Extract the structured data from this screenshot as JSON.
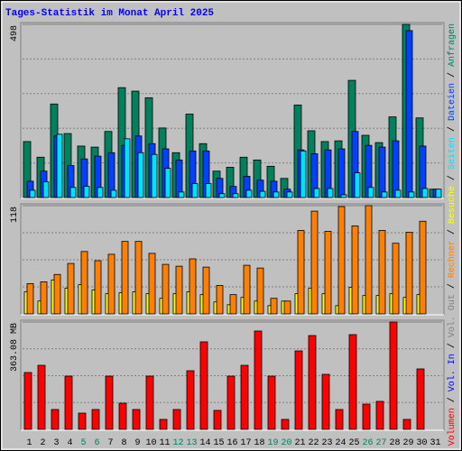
{
  "chart_data": [
    {
      "type": "bar",
      "title": "Tages-Statistik im Monat April 2025",
      "legend_separator": " / ",
      "ylim": [
        0,
        498
      ],
      "yticks": [
        498
      ],
      "legend": "right",
      "series": [
        {
          "name": "Anfragen",
          "color": "#00805c",
          "values": [
            161,
            116,
            269,
            184,
            148,
            145,
            190,
            316,
            306,
            287,
            200,
            129,
            240,
            155,
            76,
            87,
            116,
            108,
            90,
            55,
            266,
            192,
            161,
            163,
            337,
            179,
            158,
            232,
            498,
            229,
            24
          ]
        },
        {
          "name": "Dateien",
          "color": "#0040ff",
          "values": [
            47,
            76,
            177,
            92,
            111,
            119,
            129,
            150,
            177,
            155,
            140,
            108,
            134,
            134,
            55,
            32,
            61,
            50,
            47,
            24,
            137,
            126,
            137,
            140,
            190,
            150,
            145,
            163,
            480,
            148,
            24
          ]
        },
        {
          "name": "Seiten",
          "color": "#00e0ff",
          "values": [
            21,
            45,
            182,
            29,
            32,
            29,
            21,
            169,
            129,
            124,
            84,
            16,
            40,
            40,
            11,
            11,
            21,
            18,
            16,
            16,
            134,
            26,
            26,
            8,
            71,
            29,
            16,
            21,
            16,
            26,
            24
          ]
        }
      ]
    },
    {
      "type": "bar",
      "ylim": [
        0,
        118
      ],
      "yticks": [
        118
      ],
      "legend": "right",
      "series": [
        {
          "name": "Besuche",
          "color": "#ffff00",
          "values": [
            24,
            14,
            37,
            28,
            32,
            26,
            22,
            23,
            24,
            22,
            17,
            22,
            24,
            21,
            13,
            10,
            18,
            14,
            9,
            14,
            22,
            28,
            22,
            9,
            29,
            20,
            20,
            22,
            18,
            21,
            0
          ]
        },
        {
          "name": "Rechner",
          "color": "#ff8000",
          "values": [
            33,
            35,
            43,
            55,
            68,
            58,
            65,
            79,
            79,
            66,
            54,
            52,
            60,
            51,
            31,
            21,
            53,
            50,
            17,
            14,
            91,
            112,
            90,
            117,
            96,
            118,
            91,
            77,
            89,
            101,
            0
          ]
        }
      ]
    },
    {
      "type": "bar",
      "ylim": [
        0,
        363.08
      ],
      "yticks": [
        {
          "value": 363.08,
          "label": "363.08 MB"
        }
      ],
      "legend": "right",
      "categories": [
        "1",
        "2",
        "3",
        "4",
        "5",
        "6",
        "7",
        "8",
        "9",
        "10",
        "11",
        "12",
        "13",
        "14",
        "15",
        "16",
        "17",
        "18",
        "19",
        "20",
        "21",
        "22",
        "23",
        "24",
        "25",
        "26",
        "27",
        "28",
        "29",
        "30",
        "31"
      ],
      "category_colors": [
        "#000000",
        "#000000",
        "#000000",
        "#000000",
        "#00805c",
        "#00805c",
        "#000000",
        "#000000",
        "#000000",
        "#000000",
        "#000000",
        "#00805c",
        "#00805c",
        "#000000",
        "#000000",
        "#000000",
        "#000000",
        "#000000",
        "#00805c",
        "#00805c",
        "#000000",
        "#000000",
        "#000000",
        "#000000",
        "#000000",
        "#00805c",
        "#00805c",
        "#000000",
        "#000000",
        "#000000",
        "#000000"
      ],
      "series": [
        {
          "name": "Vol. Out",
          "color": "#808080",
          "values": [
            0,
            0,
            0,
            0,
            0,
            0,
            0,
            0,
            0,
            0,
            0,
            0,
            0,
            0,
            0,
            0,
            0,
            0,
            0,
            0,
            0,
            0,
            0,
            0,
            0,
            0,
            0,
            0,
            0,
            0,
            0
          ]
        },
        {
          "name": "Vol. In",
          "color": "#0000ff",
          "values": [
            0,
            0,
            0,
            0,
            0,
            0,
            0,
            0,
            0,
            0,
            0,
            0,
            0,
            0,
            0,
            0,
            0,
            0,
            0,
            0,
            0,
            0,
            0,
            0,
            0,
            0,
            0,
            0,
            0,
            0,
            0
          ]
        },
        {
          "name": "Volumen",
          "color": "#ff0000",
          "values": [
            192.2,
            216.6,
            67.1,
            180.0,
            54.9,
            67.1,
            180.0,
            88.5,
            67.1,
            180.0,
            33.6,
            67.1,
            198.3,
            296.0,
            64.1,
            180.0,
            216.6,
            332.6,
            180.0,
            33.6,
            265.4,
            317.3,
            186.1,
            67.1,
            320.4,
            85.4,
            94.6,
            363.08,
            33.6,
            204.4,
            0
          ]
        }
      ]
    }
  ]
}
